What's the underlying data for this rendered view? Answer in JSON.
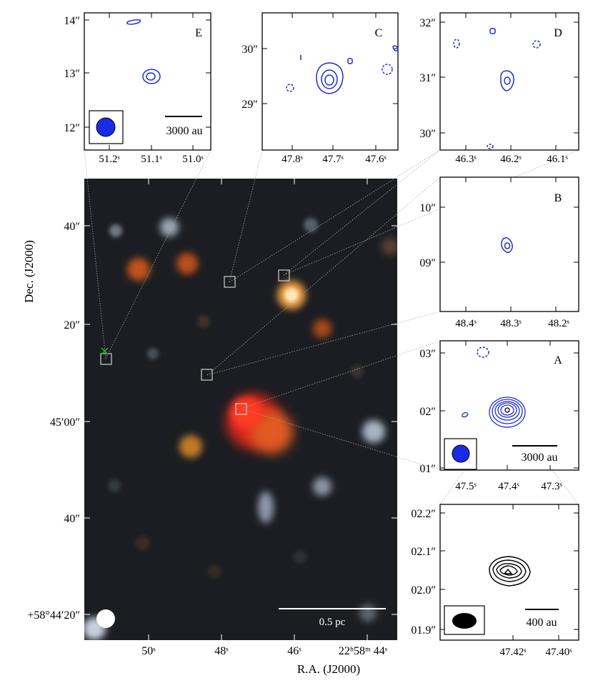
{
  "colors": {
    "contour_blue": "#1f2fd0",
    "contour_black": "#000000",
    "beam_blue": "#1a2be6",
    "cross_green": "#22aa22",
    "leader_gray": "#aaaaaa",
    "box_gray": "#cfcfcf"
  },
  "main": {
    "ylabel": "Dec. (J2000)",
    "xlabel": "R.A. (J2000)",
    "y_ticks": [
      "40″",
      "20″",
      "45′00″",
      "40″",
      "+58°44′20″"
    ],
    "x_ticks": [
      "50ˢ",
      "48ˢ",
      "46ˢ",
      "22ʰ58ᵐ 44ˢ"
    ],
    "scalebar": "0.5 pc"
  },
  "panels": {
    "E": {
      "letter": "E",
      "y_ticks": [
        "14″",
        "13″",
        "12″"
      ],
      "x_ticks": [
        "51.2ˢ",
        "51.1ˢ",
        "51.0ˢ"
      ],
      "scalebar": "3000 au"
    },
    "C": {
      "letter": "C",
      "y_ticks": [
        "30″",
        "29″"
      ],
      "x_ticks": [
        "47.8ˢ",
        "47.7ˢ",
        "47.6ˢ"
      ]
    },
    "D": {
      "letter": "D",
      "y_ticks": [
        "32″",
        "31″",
        "30″"
      ],
      "x_ticks": [
        "46.3ˢ",
        "46.2ˢ",
        "46.1ˢ"
      ]
    },
    "B": {
      "letter": "B",
      "y_ticks": [
        "10″",
        "09″"
      ],
      "x_ticks": [
        "48.4ˢ",
        "48.3ˢ",
        "48.2ˢ"
      ]
    },
    "A": {
      "letter": "A",
      "y_ticks": [
        "03″",
        "02″",
        "01″"
      ],
      "x_ticks": [
        "47.5ˢ",
        "47.4ˢ",
        "47.3ˢ"
      ],
      "scalebar": "3000 au"
    },
    "Z": {
      "y_ticks": [
        "02.2″",
        "02.1″",
        "02.0″",
        "01.9″"
      ],
      "x_ticks": [
        "47.42ˢ",
        "47.40ˢ"
      ],
      "scalebar": "400 au"
    }
  }
}
